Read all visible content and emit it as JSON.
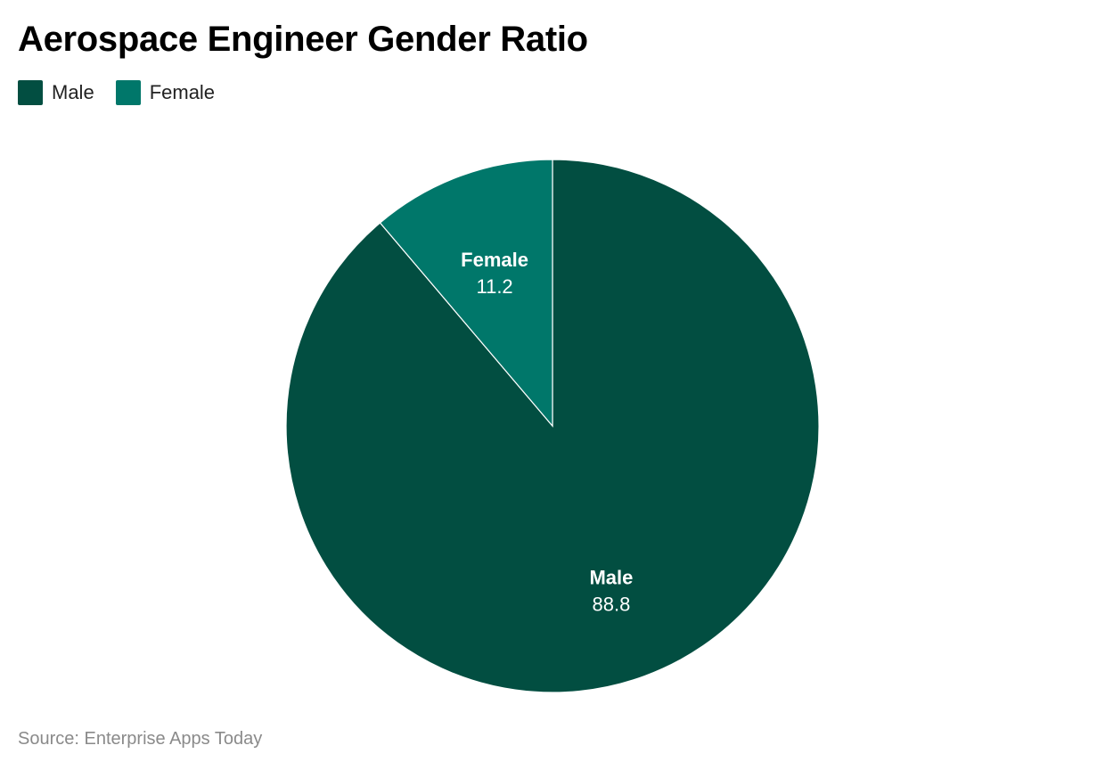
{
  "chart_data": {
    "type": "pie",
    "title": "Aerospace Engineer Gender Ratio",
    "legend_position": "top-left",
    "slices": [
      {
        "label": "Male",
        "value": 88.8,
        "value_label": "88.8",
        "color": "#024E41"
      },
      {
        "label": "Female",
        "value": 11.2,
        "value_label": "11.2",
        "color": "#00776A"
      }
    ],
    "source": "Source: Enterprise Apps Today"
  }
}
